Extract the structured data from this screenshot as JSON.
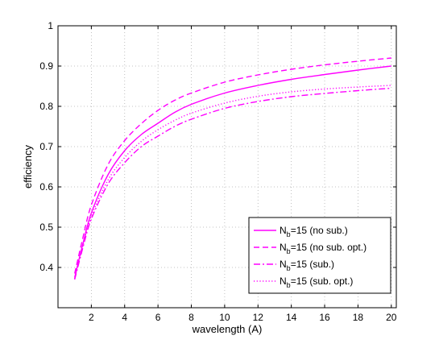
{
  "chart_data": {
    "type": "line",
    "xlabel": "wavelength (A)",
    "ylabel": "efficiency",
    "xlim": [
      0,
      20.3
    ],
    "ylim": [
      0.3,
      1.0
    ],
    "xticks": [
      "2",
      "4",
      "6",
      "8",
      "10",
      "12",
      "14",
      "16",
      "18",
      "20"
    ],
    "yticks": [
      "0.4",
      "0.5",
      "0.6",
      "0.7",
      "0.8",
      "0.9",
      "1"
    ],
    "grid": true,
    "legend_position": "bottom-right",
    "color": "#ff00ff",
    "x": [
      1,
      1.5,
      2,
      3,
      4,
      5,
      6,
      7,
      8,
      10,
      12,
      14,
      16,
      18,
      20
    ],
    "series": [
      {
        "legend_main": "N",
        "legend_sub": "b",
        "legend_rest": "=15 (no sub.)",
        "line_style": "solid",
        "values": [
          0.375,
          0.46,
          0.535,
          0.63,
          0.69,
          0.73,
          0.758,
          0.785,
          0.805,
          0.833,
          0.852,
          0.867,
          0.879,
          0.89,
          0.9
        ]
      },
      {
        "legend_main": "N",
        "legend_sub": "b",
        "legend_rest": "=15 (no sub. opt.)",
        "line_style": "dashed",
        "values": [
          0.385,
          0.475,
          0.555,
          0.655,
          0.715,
          0.757,
          0.79,
          0.815,
          0.833,
          0.86,
          0.878,
          0.892,
          0.903,
          0.912,
          0.92
        ]
      },
      {
        "legend_main": "N",
        "legend_sub": "b",
        "legend_rest": "=15 (sub.)",
        "line_style": "dashdot",
        "values": [
          0.37,
          0.45,
          0.52,
          0.607,
          0.66,
          0.7,
          0.726,
          0.75,
          0.768,
          0.795,
          0.812,
          0.824,
          0.832,
          0.839,
          0.845
        ]
      },
      {
        "legend_main": "N",
        "legend_sub": "b",
        "legend_rest": "=15 (sub. opt.)",
        "line_style": "dotted",
        "values": [
          0.372,
          0.455,
          0.527,
          0.617,
          0.673,
          0.713,
          0.742,
          0.765,
          0.783,
          0.808,
          0.825,
          0.836,
          0.843,
          0.848,
          0.852
        ]
      }
    ]
  }
}
